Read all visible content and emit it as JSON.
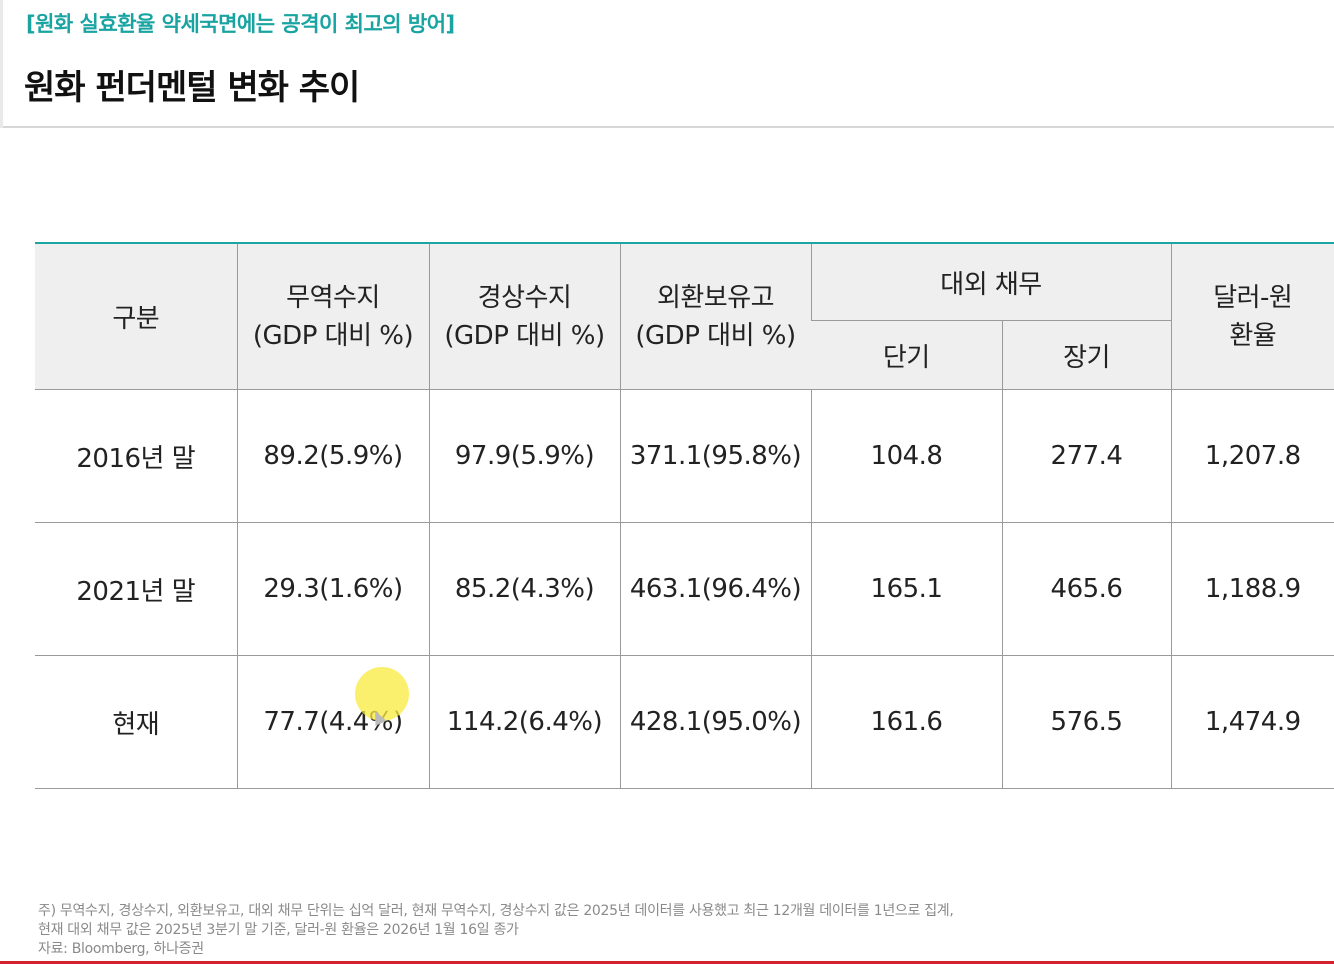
{
  "header": {
    "subtitle": "[원화 실효환율 약세국면에는 공격이 최고의 방어]",
    "title": "원화 펀더멘털 변화 추이"
  },
  "table": {
    "headers": {
      "category": "구분",
      "trade_balance": [
        "무역수지",
        "(GDP 대비 %)"
      ],
      "current_account": [
        "경상수지",
        "(GDP 대비 %)"
      ],
      "fx_reserves": [
        "외환보유고",
        "(GDP 대비 %)"
      ],
      "external_debt": "대외 채무",
      "short_term": "단기",
      "long_term": "장기",
      "usd_krw": [
        "달러-원",
        "환율"
      ]
    },
    "rows": [
      {
        "label": "2016년 말",
        "trade": "89.2(5.9%)",
        "current": "97.9(5.9%)",
        "reserves": "371.1(95.8%)",
        "short": "104.8",
        "long": "277.4",
        "fx": "1,207.8"
      },
      {
        "label": "2021년 말",
        "trade": "29.3(1.6%)",
        "current": "85.2(4.3%)",
        "reserves": "463.1(96.4%)",
        "short": "165.1",
        "long": "465.6",
        "fx": "1,188.9"
      },
      {
        "label": "현재",
        "trade": "77.7(4.4%)",
        "current": "114.2(6.4%)",
        "reserves": "428.1(95.0%)",
        "short": "161.6",
        "long": "576.5",
        "fx": "1,474.9"
      }
    ]
  },
  "footnote": {
    "line1": "주) 무역수지, 경상수지, 외환보유고, 대외 채무 단위는 십억 달러, 현재 무역수지, 경상수지 값은 2025년 데이터를 사용했고 최근 12개월 데이터를 1년으로 집계,",
    "line2": "현재 대외 채무 값은 2025년 3분기 말 기준, 달러-원 환율은 2026년 1월 16일 종가",
    "line3": "자료: Bloomberg, 하나증권"
  },
  "colors": {
    "accent": "#19a4a2",
    "bottom_bar": "#d4212f",
    "header_bg": "#efefef"
  }
}
